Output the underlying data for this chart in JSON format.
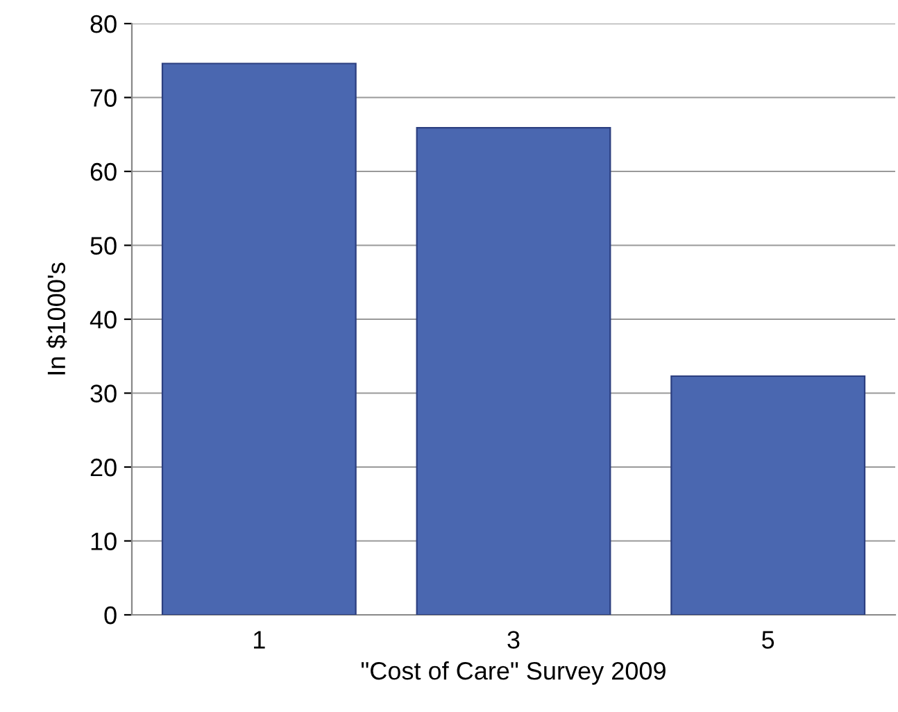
{
  "chart_data": {
    "type": "bar",
    "xlabel": "\"Cost of Care\" Survey 2009",
    "ylabel": "In $1000's",
    "categories": [
      "1",
      "3",
      "5"
    ],
    "values": [
      74.6,
      65.9,
      32.3
    ],
    "color": "#4a67b0",
    "ylim": [
      0,
      80
    ],
    "yticks": [
      0,
      10,
      20,
      30,
      40,
      50,
      60,
      70,
      80
    ],
    "grid": "y"
  }
}
